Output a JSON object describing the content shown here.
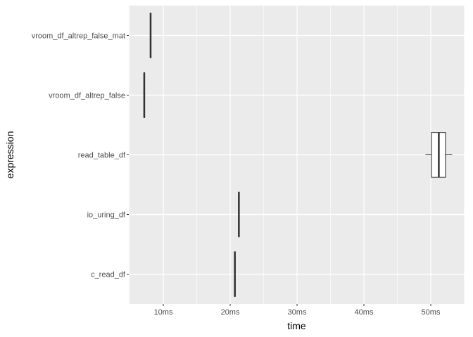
{
  "chart_data": {
    "type": "boxplot",
    "xlabel": "time",
    "ylabel": "expression",
    "xlim": [
      4.84,
      55.05
    ],
    "x_ticks": [
      10,
      20,
      30,
      40,
      50
    ],
    "x_tick_labels": [
      "10ms",
      "20ms",
      "30ms",
      "40ms",
      "50ms"
    ],
    "x_unit": "ms",
    "grid": true,
    "categories": [
      "c_read_df",
      "io_uring_df",
      "read_table_df",
      "vroom_df_altrep_false",
      "vroom_df_altrep_false_mat"
    ],
    "boxes": [
      {
        "category": "c_read_df",
        "min": 20.6,
        "q1": 20.65,
        "median": 20.7,
        "q3": 20.75,
        "max": 20.8
      },
      {
        "category": "io_uring_df",
        "min": 21.2,
        "q1": 21.25,
        "median": 21.3,
        "q3": 21.35,
        "max": 21.4
      },
      {
        "category": "read_table_df",
        "min": 49.2,
        "q1": 50.1,
        "median": 51.2,
        "q3": 52.2,
        "max": 53.2
      },
      {
        "category": "vroom_df_altrep_false",
        "min": 7.05,
        "q1": 7.1,
        "median": 7.15,
        "q3": 7.2,
        "max": 7.25
      },
      {
        "category": "vroom_df_altrep_false_mat",
        "min": 8.0,
        "q1": 8.05,
        "median": 8.1,
        "q3": 8.15,
        "max": 8.2
      }
    ],
    "colors": {
      "panel": "#ebebeb",
      "grid": "#ffffff",
      "box_line": "#333333",
      "box_fill": "#ffffff"
    }
  }
}
